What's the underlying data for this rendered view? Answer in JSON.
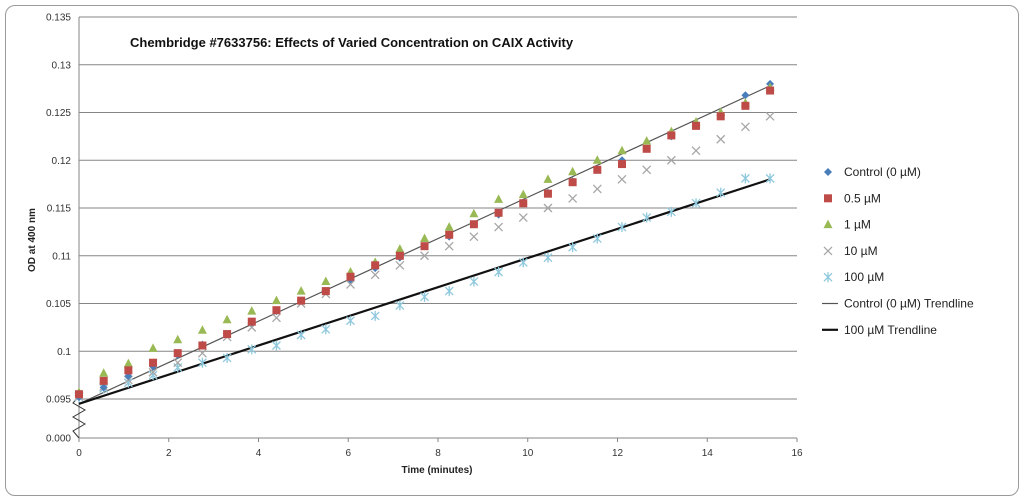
{
  "chart_data": {
    "type": "scatter",
    "title": "Chembridge #7633756: Effects of Varied Concentration on CAIX Activity",
    "xlabel": "Time (minutes)",
    "ylabel": "OD at 400 nm",
    "xlim": [
      0,
      16
    ],
    "x_ticks": [
      "0",
      "2",
      "4",
      "6",
      "8",
      "10",
      "12",
      "14",
      "16"
    ],
    "y_ticks": [
      "0.000",
      "0.095",
      "0.1",
      "0.105",
      "0.11",
      "0.115",
      "0.12",
      "0.125",
      "0.13",
      "0.135"
    ],
    "axis_break": "0.000 to 0.095",
    "x": [
      0,
      0.55,
      1.1,
      1.65,
      2.2,
      2.75,
      3.3,
      3.85,
      4.4,
      4.95,
      5.5,
      6.05,
      6.6,
      7.15,
      7.7,
      8.25,
      8.8,
      9.35,
      9.9,
      10.45,
      11.0,
      11.55,
      12.1,
      12.65,
      13.2,
      13.75,
      14.3,
      14.85,
      15.4
    ],
    "series": [
      {
        "name": "Control (0 µM)",
        "marker": "diamond",
        "color": "#4a7ebb",
        "values": [
          0.0952,
          0.0962,
          0.0974,
          0.0984,
          0.0996,
          0.1007,
          0.1018,
          0.103,
          0.1042,
          0.1053,
          0.1063,
          0.1075,
          0.1087,
          0.1098,
          0.111,
          0.112,
          0.1133,
          0.1143,
          0.1155,
          0.1166,
          0.1178,
          0.119,
          0.12,
          0.1212,
          0.1225,
          0.1236,
          0.1247,
          0.1268,
          0.128
        ]
      },
      {
        "name": "0.5 µM",
        "marker": "square",
        "color": "#be4b48",
        "values": [
          0.0955,
          0.0969,
          0.098,
          0.0988,
          0.0998,
          0.1006,
          0.1018,
          0.1031,
          0.1043,
          0.1053,
          0.1063,
          0.1078,
          0.109,
          0.11,
          0.111,
          0.1122,
          0.1133,
          0.1145,
          0.1155,
          0.1165,
          0.1177,
          0.119,
          0.1196,
          0.1212,
          0.1226,
          0.1236,
          0.1246,
          0.1257,
          0.1273
        ]
      },
      {
        "name": "1 µM",
        "marker": "triangle",
        "color": "#98b954",
        "values": [
          0.0957,
          0.0977,
          0.0987,
          0.1003,
          0.1012,
          0.1022,
          0.1033,
          0.1042,
          0.1053,
          0.1063,
          0.1073,
          0.1083,
          0.1093,
          0.1107,
          0.1118,
          0.113,
          0.1144,
          0.1159,
          0.1164,
          0.118,
          0.1188,
          0.12,
          0.121,
          0.122,
          0.123,
          0.124,
          0.125,
          0.126,
          0.1276
        ]
      },
      {
        "name": "10 µM",
        "marker": "x",
        "color": "#a6a6a6",
        "values": [
          0.0953,
          0.0963,
          0.097,
          0.0978,
          0.0988,
          0.0998,
          0.1015,
          0.1025,
          0.1035,
          0.105,
          0.106,
          0.107,
          0.108,
          0.109,
          0.11,
          0.111,
          0.112,
          0.113,
          0.114,
          0.115,
          0.116,
          0.117,
          0.118,
          0.119,
          0.12,
          0.121,
          0.1222,
          0.1235,
          0.1246
        ]
      },
      {
        "name": "100 µM",
        "marker": "asterisk",
        "color": "#8ec8dd",
        "values": [
          0.0952,
          0.0961,
          0.0967,
          0.0975,
          0.0983,
          0.0988,
          0.0993,
          0.1002,
          0.1006,
          0.1017,
          0.1023,
          0.1032,
          0.1037,
          0.1048,
          0.1057,
          0.1063,
          0.1073,
          0.1083,
          0.1093,
          0.1098,
          0.1109,
          0.1118,
          0.113,
          0.114,
          0.1146,
          0.1155,
          0.1166,
          0.1181,
          0.1181
        ]
      }
    ],
    "trendlines": [
      {
        "name": "Control (0 µM) Trendline",
        "x": [
          0,
          15.4
        ],
        "y": [
          0.0945,
          0.1278
        ],
        "color": "#555555",
        "weight": "thin"
      },
      {
        "name": "100 µM Trendline",
        "x": [
          0,
          15.4
        ],
        "y": [
          0.0945,
          0.118
        ],
        "color": "#111111",
        "weight": "thick"
      }
    ],
    "grid": true,
    "legend_position": "right"
  }
}
